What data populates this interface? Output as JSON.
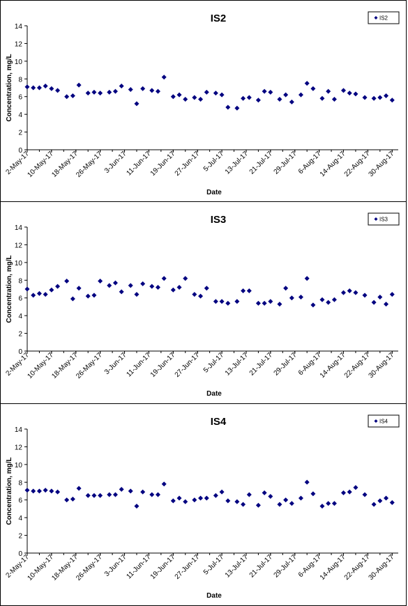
{
  "chart_data": [
    {
      "type": "scatter",
      "title": "IS2",
      "xlabel": "Date",
      "ylabel": "Concentration, mg/L",
      "ylim": [
        0,
        14
      ],
      "yticks": [
        "0",
        "2",
        "4",
        "6",
        "8",
        "10",
        "12",
        "14"
      ],
      "xlim": [
        "2-May-17",
        "1-Sep-17"
      ],
      "xtick_labels": [
        "2-May-17",
        "10-May-17",
        "18-May-17",
        "26-May-17",
        "3-Jun-17",
        "11-Jun-17",
        "19-Jun-17",
        "27-Jun-17",
        "5-Jul-17",
        "13-Jul-17",
        "21-Jul-17",
        "29-Jul-17",
        "6-Aug-17",
        "14-Aug-17",
        "22-Aug-17",
        "30-Aug-17"
      ],
      "grid": false,
      "legend": "top-right",
      "color": "#000080",
      "series": [
        {
          "name": "IS2",
          "points": [
            [
              "2-May-17",
              7.1
            ],
            [
              "4-May-17",
              7.0
            ],
            [
              "6-May-17",
              7.0
            ],
            [
              "8-May-17",
              7.2
            ],
            [
              "10-May-17",
              6.9
            ],
            [
              "12-May-17",
              6.7
            ],
            [
              "15-May-17",
              6.0
            ],
            [
              "17-May-17",
              6.1
            ],
            [
              "19-May-17",
              7.3
            ],
            [
              "22-May-17",
              6.4
            ],
            [
              "24-May-17",
              6.5
            ],
            [
              "26-May-17",
              6.4
            ],
            [
              "29-May-17",
              6.5
            ],
            [
              "31-May-17",
              6.6
            ],
            [
              "2-Jun-17",
              7.2
            ],
            [
              "5-Jun-17",
              6.8
            ],
            [
              "7-Jun-17",
              5.2
            ],
            [
              "9-Jun-17",
              6.9
            ],
            [
              "12-Jun-17",
              6.7
            ],
            [
              "14-Jun-17",
              6.6
            ],
            [
              "16-Jun-17",
              8.2
            ],
            [
              "19-Jun-17",
              6.0
            ],
            [
              "21-Jun-17",
              6.2
            ],
            [
              "23-Jun-17",
              5.7
            ],
            [
              "26-Jun-17",
              5.9
            ],
            [
              "28-Jun-17",
              5.7
            ],
            [
              "30-Jun-17",
              6.5
            ],
            [
              "3-Jul-17",
              6.4
            ],
            [
              "5-Jul-17",
              6.2
            ],
            [
              "7-Jul-17",
              4.8
            ],
            [
              "10-Jul-17",
              4.7
            ],
            [
              "12-Jul-17",
              5.8
            ],
            [
              "14-Jul-17",
              5.9
            ],
            [
              "17-Jul-17",
              5.6
            ],
            [
              "19-Jul-17",
              6.6
            ],
            [
              "21-Jul-17",
              6.5
            ],
            [
              "24-Jul-17",
              5.7
            ],
            [
              "26-Jul-17",
              6.2
            ],
            [
              "28-Jul-17",
              5.4
            ],
            [
              "31-Jul-17",
              6.2
            ],
            [
              "2-Aug-17",
              7.5
            ],
            [
              "4-Aug-17",
              6.9
            ],
            [
              "7-Aug-17",
              5.8
            ],
            [
              "9-Aug-17",
              6.6
            ],
            [
              "11-Aug-17",
              5.7
            ],
            [
              "14-Aug-17",
              6.7
            ],
            [
              "16-Aug-17",
              6.4
            ],
            [
              "18-Aug-17",
              6.3
            ],
            [
              "21-Aug-17",
              5.9
            ],
            [
              "24-Aug-17",
              5.8
            ],
            [
              "26-Aug-17",
              5.9
            ],
            [
              "28-Aug-17",
              6.1
            ],
            [
              "30-Aug-17",
              5.6
            ]
          ]
        }
      ]
    },
    {
      "type": "scatter",
      "title": "IS3",
      "xlabel": "Date",
      "ylabel": "Concentration, mg/L",
      "ylim": [
        0,
        14
      ],
      "yticks": [
        "0",
        "2",
        "4",
        "6",
        "8",
        "10",
        "12",
        "14"
      ],
      "xlim": [
        "2-May-17",
        "1-Sep-17"
      ],
      "xtick_labels": [
        "2-May-17",
        "10-May-17",
        "18-May-17",
        "26-May-17",
        "3-Jun-17",
        "11-Jun-17",
        "19-Jun-17",
        "27-Jun-17",
        "5-Jul-17",
        "13-Jul-17",
        "21-Jul-17",
        "29-Jul-17",
        "6-Aug-17",
        "14-Aug-17",
        "22-Aug-17",
        "30-Aug-17"
      ],
      "grid": false,
      "legend": "top-right",
      "color": "#000080",
      "series": [
        {
          "name": "IS3",
          "points": [
            [
              "2-May-17",
              7.0
            ],
            [
              "4-May-17",
              6.3
            ],
            [
              "6-May-17",
              6.5
            ],
            [
              "8-May-17",
              6.4
            ],
            [
              "10-May-17",
              6.9
            ],
            [
              "12-May-17",
              7.3
            ],
            [
              "15-May-17",
              7.9
            ],
            [
              "17-May-17",
              5.9
            ],
            [
              "19-May-17",
              7.1
            ],
            [
              "22-May-17",
              6.2
            ],
            [
              "24-May-17",
              6.3
            ],
            [
              "26-May-17",
              7.9
            ],
            [
              "29-May-17",
              7.4
            ],
            [
              "31-May-17",
              7.7
            ],
            [
              "2-Jun-17",
              6.7
            ],
            [
              "5-Jun-17",
              7.4
            ],
            [
              "7-Jun-17",
              6.4
            ],
            [
              "9-Jun-17",
              7.6
            ],
            [
              "12-Jun-17",
              7.3
            ],
            [
              "14-Jun-17",
              7.2
            ],
            [
              "16-Jun-17",
              8.2
            ],
            [
              "19-Jun-17",
              6.9
            ],
            [
              "21-Jun-17",
              7.2
            ],
            [
              "23-Jun-17",
              8.2
            ],
            [
              "26-Jun-17",
              6.4
            ],
            [
              "28-Jun-17",
              6.2
            ],
            [
              "30-Jun-17",
              7.1
            ],
            [
              "3-Jul-17",
              5.6
            ],
            [
              "5-Jul-17",
              5.6
            ],
            [
              "7-Jul-17",
              5.4
            ],
            [
              "10-Jul-17",
              5.6
            ],
            [
              "12-Jul-17",
              6.8
            ],
            [
              "14-Jul-17",
              6.8
            ],
            [
              "17-Jul-17",
              5.4
            ],
            [
              "19-Jul-17",
              5.4
            ],
            [
              "21-Jul-17",
              5.6
            ],
            [
              "24-Jul-17",
              5.3
            ],
            [
              "26-Jul-17",
              7.1
            ],
            [
              "28-Jul-17",
              6.0
            ],
            [
              "31-Jul-17",
              6.1
            ],
            [
              "2-Aug-17",
              8.2
            ],
            [
              "4-Aug-17",
              5.2
            ],
            [
              "7-Aug-17",
              5.8
            ],
            [
              "9-Aug-17",
              5.5
            ],
            [
              "11-Aug-17",
              5.8
            ],
            [
              "14-Aug-17",
              6.6
            ],
            [
              "16-Aug-17",
              6.8
            ],
            [
              "18-Aug-17",
              6.6
            ],
            [
              "21-Aug-17",
              6.3
            ],
            [
              "24-Aug-17",
              5.5
            ],
            [
              "26-Aug-17",
              6.1
            ],
            [
              "28-Aug-17",
              5.3
            ],
            [
              "30-Aug-17",
              6.4
            ]
          ]
        }
      ]
    },
    {
      "type": "scatter",
      "title": "IS4",
      "xlabel": "Date",
      "ylabel": "Concentration, mg/L",
      "ylim": [
        0,
        14
      ],
      "yticks": [
        "0",
        "2",
        "4",
        "6",
        "8",
        "10",
        "12",
        "14"
      ],
      "xlim": [
        "2-May-17",
        "1-Sep-17"
      ],
      "xtick_labels": [
        "2-May-17",
        "10-May-17",
        "18-May-17",
        "26-May-17",
        "3-Jun-17",
        "11-Jun-17",
        "19-Jun-17",
        "27-Jun-17",
        "5-Jul-17",
        "13-Jul-17",
        "21-Jul-17",
        "29-Jul-17",
        "6-Aug-17",
        "14-Aug-17",
        "22-Aug-17",
        "30-Aug-17"
      ],
      "grid": false,
      "legend": "top-right",
      "color": "#000080",
      "series": [
        {
          "name": "IS4",
          "points": [
            [
              "2-May-17",
              7.1
            ],
            [
              "4-May-17",
              7.0
            ],
            [
              "6-May-17",
              7.0
            ],
            [
              "8-May-17",
              7.1
            ],
            [
              "10-May-17",
              7.0
            ],
            [
              "12-May-17",
              6.9
            ],
            [
              "15-May-17",
              6.0
            ],
            [
              "17-May-17",
              6.1
            ],
            [
              "19-May-17",
              7.3
            ],
            [
              "22-May-17",
              6.5
            ],
            [
              "24-May-17",
              6.5
            ],
            [
              "26-May-17",
              6.5
            ],
            [
              "29-May-17",
              6.6
            ],
            [
              "31-May-17",
              6.6
            ],
            [
              "2-Jun-17",
              7.2
            ],
            [
              "5-Jun-17",
              7.0
            ],
            [
              "7-Jun-17",
              5.3
            ],
            [
              "9-Jun-17",
              6.9
            ],
            [
              "12-Jun-17",
              6.6
            ],
            [
              "14-Jun-17",
              6.6
            ],
            [
              "16-Jun-17",
              7.8
            ],
            [
              "19-Jun-17",
              5.9
            ],
            [
              "21-Jun-17",
              6.2
            ],
            [
              "23-Jun-17",
              5.8
            ],
            [
              "26-Jun-17",
              6.0
            ],
            [
              "28-Jun-17",
              6.2
            ],
            [
              "30-Jun-17",
              6.2
            ],
            [
              "3-Jul-17",
              6.5
            ],
            [
              "5-Jul-17",
              6.9
            ],
            [
              "7-Jul-17",
              5.9
            ],
            [
              "10-Jul-17",
              5.8
            ],
            [
              "12-Jul-17",
              5.5
            ],
            [
              "14-Jul-17",
              6.6
            ],
            [
              "17-Jul-17",
              5.4
            ],
            [
              "19-Jul-17",
              6.8
            ],
            [
              "21-Jul-17",
              6.4
            ],
            [
              "24-Jul-17",
              5.5
            ],
            [
              "26-Jul-17",
              6.0
            ],
            [
              "28-Jul-17",
              5.6
            ],
            [
              "31-Jul-17",
              6.2
            ],
            [
              "2-Aug-17",
              8.0
            ],
            [
              "4-Aug-17",
              6.7
            ],
            [
              "7-Aug-17",
              5.3
            ],
            [
              "9-Aug-17",
              5.6
            ],
            [
              "11-Aug-17",
              5.6
            ],
            [
              "14-Aug-17",
              6.8
            ],
            [
              "16-Aug-17",
              6.9
            ],
            [
              "18-Aug-17",
              7.4
            ],
            [
              "21-Aug-17",
              6.6
            ],
            [
              "24-Aug-17",
              5.5
            ],
            [
              "26-Aug-17",
              5.9
            ],
            [
              "28-Aug-17",
              6.2
            ],
            [
              "30-Aug-17",
              5.7
            ]
          ]
        }
      ]
    }
  ]
}
